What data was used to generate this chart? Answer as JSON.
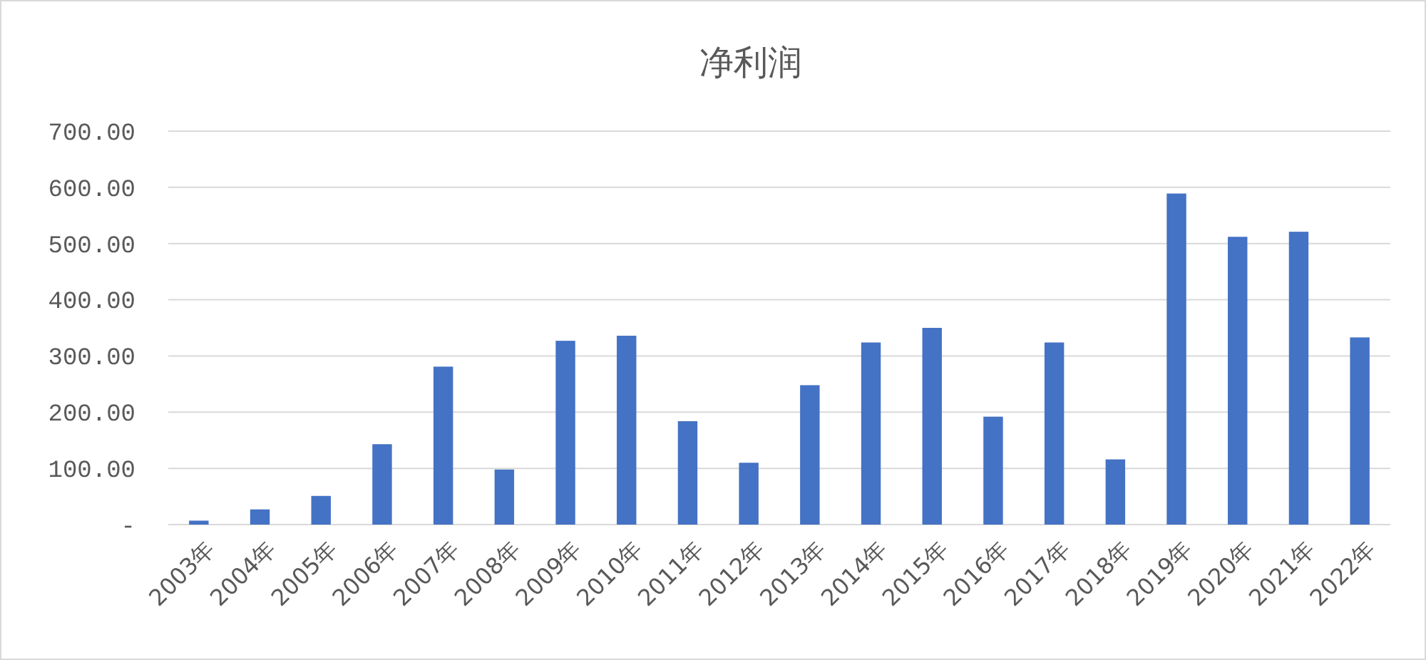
{
  "chart_data": {
    "type": "bar",
    "title": "净利润",
    "categories": [
      "2003年",
      "2004年",
      "2005年",
      "2006年",
      "2007年",
      "2008年",
      "2009年",
      "2010年",
      "2011年",
      "2012年",
      "2013年",
      "2014年",
      "2015年",
      "2016年",
      "2017年",
      "2018年",
      "2019年",
      "2020年",
      "2021年",
      "2022年"
    ],
    "values": [
      7,
      27,
      51,
      143,
      281,
      98,
      327,
      336,
      184,
      110,
      248,
      324,
      350,
      192,
      324,
      116,
      589,
      512,
      521,
      333
    ],
    "color": "#4472c4",
    "ylim": [
      0,
      700
    ],
    "yticks": [
      {
        "value": 0,
        "label": "-"
      },
      {
        "value": 100,
        "label": "100.00"
      },
      {
        "value": 200,
        "label": "200.00"
      },
      {
        "value": 300,
        "label": "300.00"
      },
      {
        "value": 400,
        "label": "400.00"
      },
      {
        "value": 500,
        "label": "500.00"
      },
      {
        "value": 600,
        "label": "600.00"
      },
      {
        "value": 700,
        "label": "700.00"
      }
    ],
    "grid": "y"
  }
}
